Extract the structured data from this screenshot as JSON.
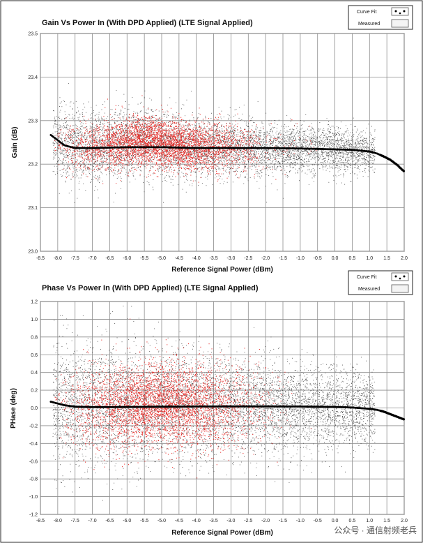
{
  "chart_data": [
    {
      "type": "scatter",
      "title": "Gain Vs Power In (With DPD Applied) (LTE Signal Applied)",
      "xlabel": "Reference Signal Power (dBm)",
      "ylabel": "Gain (dB)",
      "xlim": [
        -8.5,
        2.0
      ],
      "ylim": [
        23.0,
        23.5
      ],
      "x_ticks": [
        "-8.5",
        "-8.0",
        "-7.5",
        "-7.0",
        "-6.5",
        "-6.0",
        "-5.5",
        "-5.0",
        "-4.5",
        "-4.0",
        "-3.5",
        "-3.0",
        "-2.5",
        "-2.0",
        "-1.5",
        "-1.0",
        "-0.5",
        "0.0",
        "0.5",
        "1.0",
        "1.5",
        "2.0"
      ],
      "y_ticks": [
        "23.0",
        "23.1",
        "23.2",
        "23.3",
        "23.4",
        "23.5"
      ],
      "grid": true,
      "legend_position": "top-right",
      "legend": [
        "Curve Fit",
        "Measured"
      ],
      "series": [
        {
          "name": "Curve Fit",
          "x": [
            -8.2,
            -8.0,
            -7.8,
            -7.5,
            -7.0,
            -6.5,
            -6.0,
            -5.5,
            -5.0,
            -4.5,
            -4.0,
            -3.0,
            -2.0,
            -1.0,
            0.0,
            0.5,
            1.0,
            1.2,
            1.4,
            1.6,
            1.8,
            2.0
          ],
          "y": [
            23.267,
            23.255,
            23.243,
            23.237,
            23.237,
            23.238,
            23.239,
            23.239,
            23.239,
            23.238,
            23.237,
            23.237,
            23.237,
            23.236,
            23.234,
            23.233,
            23.229,
            23.225,
            23.218,
            23.21,
            23.198,
            23.183
          ]
        },
        {
          "name": "Measured",
          "x": [
            -8.0,
            -7.5,
            -7.0,
            -6.5,
            -6.0,
            -5.5,
            -5.0,
            -4.5,
            -4.0,
            -3.5,
            -3.0,
            -2.5,
            -2.0,
            -1.5,
            -1.0,
            -0.5,
            0.0,
            0.5,
            1.0
          ],
          "y": [
            23.25,
            23.24,
            23.24,
            23.245,
            23.25,
            23.255,
            23.25,
            23.245,
            23.24,
            23.24,
            23.24,
            23.24,
            23.235,
            23.235,
            23.235,
            23.235,
            23.235,
            23.23,
            23.23
          ]
        }
      ]
    },
    {
      "type": "scatter",
      "title": "Phase Vs Power In (With DPD Applied) (LTE Signal Applied)",
      "xlabel": "Reference Signal Power (dBm)",
      "ylabel": "PHase (deg)",
      "xlim": [
        -8.5,
        2.0
      ],
      "ylim": [
        -1.2,
        1.2
      ],
      "x_ticks": [
        "-8.5",
        "-8.0",
        "-7.5",
        "-7.0",
        "-6.5",
        "-6.0",
        "-5.5",
        "-5.0",
        "-4.5",
        "-4.0",
        "-3.5",
        "-3.0",
        "-2.5",
        "-2.0",
        "-1.5",
        "-1.0",
        "-0.5",
        "0.0",
        "0.5",
        "1.0",
        "1.5",
        "2.0"
      ],
      "y_ticks": [
        "-1.2",
        "-1.0",
        "-0.8",
        "-0.6",
        "-0.4",
        "-0.2",
        "0.0",
        "0.2",
        "0.4",
        "0.6",
        "0.8",
        "1.0",
        "1.2"
      ],
      "grid": true,
      "legend_position": "top-right",
      "legend": [
        "Curve Fit",
        "Measured"
      ],
      "series": [
        {
          "name": "Curve Fit",
          "x": [
            -8.2,
            -8.0,
            -7.8,
            -7.5,
            -7.0,
            -6.5,
            -6.0,
            -5.0,
            -4.0,
            -3.0,
            -2.0,
            -1.0,
            0.0,
            0.5,
            1.0,
            1.2,
            1.4,
            1.6,
            1.8,
            2.0
          ],
          "y": [
            0.07,
            0.05,
            0.03,
            0.015,
            0.01,
            0.01,
            0.012,
            0.015,
            0.017,
            0.018,
            0.018,
            0.017,
            0.012,
            0.005,
            -0.01,
            -0.02,
            -0.04,
            -0.07,
            -0.1,
            -0.13
          ]
        },
        {
          "name": "Measured",
          "x": [
            -8.0,
            -7.5,
            -7.0,
            -6.5,
            -6.0,
            -5.5,
            -5.0,
            -4.5,
            -4.0,
            -3.5,
            -3.0,
            -2.5,
            -2.0,
            -1.5,
            -1.0,
            -0.5,
            0.0,
            0.5,
            1.0
          ],
          "y": [
            0.03,
            0.02,
            0.02,
            0.02,
            0.03,
            0.04,
            0.05,
            0.04,
            0.03,
            0.02,
            0.02,
            0.02,
            0.02,
            0.02,
            0.01,
            0.01,
            0.01,
            0.0,
            -0.01
          ]
        }
      ]
    }
  ],
  "watermark": "公众号 · 通信射频老兵",
  "colors": {
    "measured_red": "#e8322f",
    "measured_gray": "#4a4a4a",
    "curve": "#000000",
    "grid": "#8c8c8c"
  }
}
